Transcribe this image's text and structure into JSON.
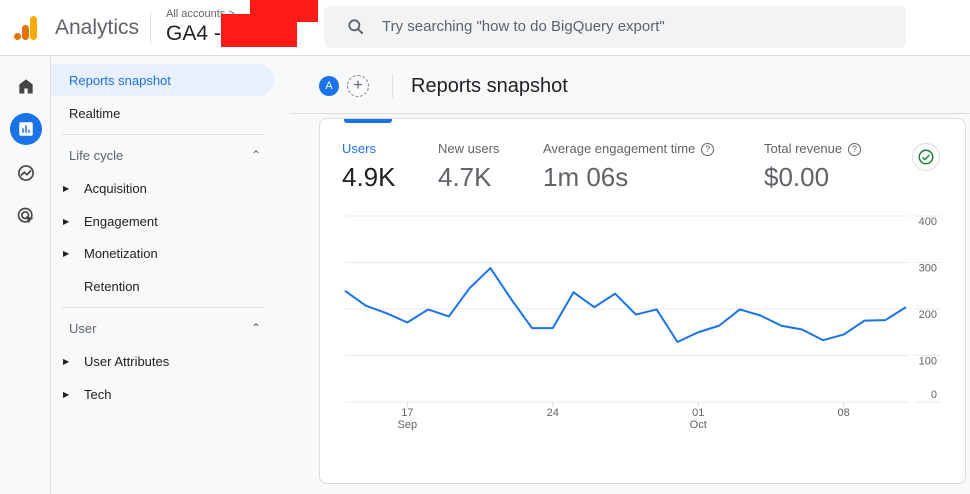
{
  "header": {
    "app_name": "Analytics",
    "account_crumb": "All accounts",
    "property": "GA4 -",
    "search_placeholder": "Try searching \"how to do BigQuery export\""
  },
  "rail": [
    "home",
    "reports",
    "explore",
    "advertising"
  ],
  "nav": {
    "items": [
      {
        "label": "Reports snapshot",
        "type": "selected"
      },
      {
        "label": "Realtime",
        "type": "link"
      },
      {
        "label": "Life cycle",
        "type": "section"
      },
      {
        "label": "Acquisition",
        "type": "expandable"
      },
      {
        "label": "Engagement",
        "type": "expandable"
      },
      {
        "label": "Monetization",
        "type": "expandable"
      },
      {
        "label": "Retention",
        "type": "link"
      },
      {
        "label": "User",
        "type": "section"
      },
      {
        "label": "User Attributes",
        "type": "expandable"
      },
      {
        "label": "Tech",
        "type": "expandable"
      }
    ]
  },
  "title_bar": {
    "avatar_letter": "A",
    "title": "Reports snapshot"
  },
  "metrics": [
    {
      "label": "Users",
      "value": "4.9K",
      "help": false
    },
    {
      "label": "New users",
      "value": "4.7K",
      "help": false
    },
    {
      "label": "Average engagement time",
      "value": "1m 06s",
      "help": true
    },
    {
      "label": "Total revenue",
      "value": "$0.00",
      "help": true
    }
  ],
  "colors": {
    "accent": "#1a73e8",
    "line": "#1a73e8",
    "check": "#188038"
  },
  "chart_data": {
    "type": "line",
    "series": [
      {
        "name": "Users",
        "values": [
          239,
          207,
          191,
          171,
          199,
          184,
          245,
          288,
          221,
          159,
          159,
          236,
          204,
          233,
          188,
          199,
          129,
          150,
          164,
          199,
          186,
          164,
          156,
          133,
          145,
          175,
          176,
          204
        ]
      }
    ],
    "x_ticks": [
      {
        "index": 3,
        "label": "17",
        "sub": "Sep"
      },
      {
        "index": 10,
        "label": "24",
        "sub": ""
      },
      {
        "index": 17,
        "label": "01",
        "sub": "Oct"
      },
      {
        "index": 24,
        "label": "08",
        "sub": ""
      }
    ],
    "y_ticks": [
      "0",
      "100",
      "200",
      "300",
      "400"
    ],
    "ylim": [
      0,
      400
    ],
    "grid": true
  }
}
